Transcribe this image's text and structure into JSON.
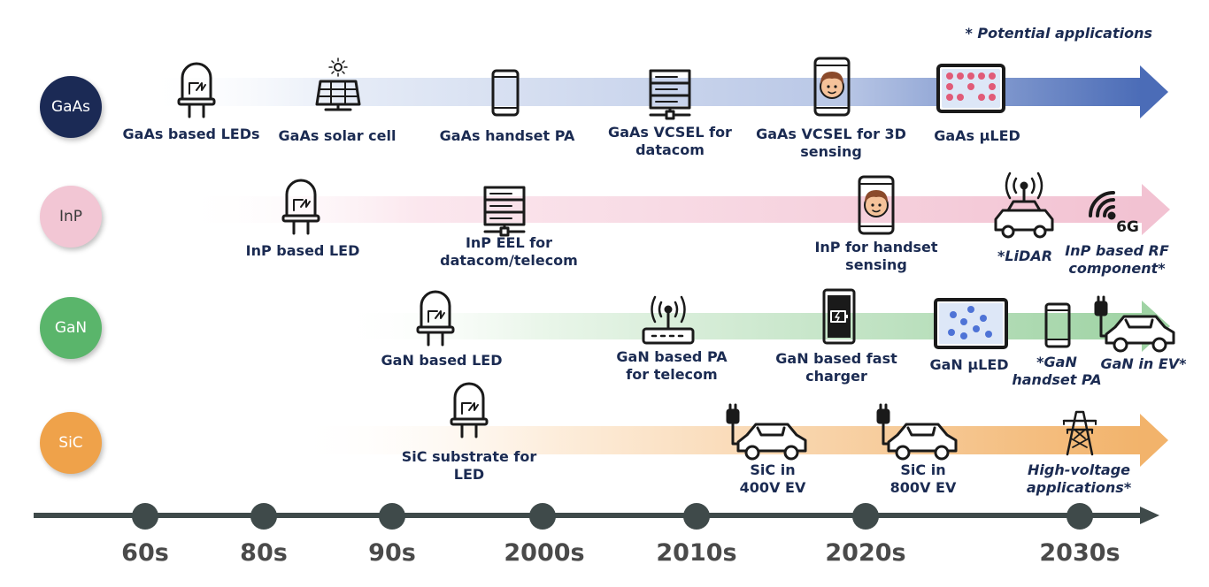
{
  "note": "* Potential applications",
  "colors": {
    "gaas": "#1b2a55",
    "inp": "#f2c6d4",
    "gan": "#5ab56b",
    "sic": "#efa24a",
    "timeline": "#3f4a4a"
  },
  "rows": [
    {
      "name": "GaAs",
      "items": [
        {
          "icon": "led-icon",
          "lines": [
            "GaAs based LEDs"
          ]
        },
        {
          "icon": "solar-panel-icon",
          "lines": [
            "GaAs solar cell"
          ]
        },
        {
          "icon": "smartphone-icon",
          "lines": [
            "GaAs handset PA"
          ]
        },
        {
          "icon": "server-icon",
          "lines": [
            "GaAs VCSEL for",
            "datacom"
          ]
        },
        {
          "icon": "face-phone-icon",
          "lines": [
            "GaAs VCSEL for 3D",
            "sensing"
          ]
        },
        {
          "icon": "microled-display-icon",
          "lines": [
            "GaAs µLED"
          ]
        }
      ]
    },
    {
      "name": "InP",
      "items": [
        {
          "icon": "led-icon",
          "lines": [
            "InP based LED"
          ]
        },
        {
          "icon": "server-icon",
          "lines": [
            "InP EEL for",
            "datacom/telecom"
          ]
        },
        {
          "icon": "face-phone-icon",
          "lines": [
            "InP for handset",
            "sensing"
          ]
        },
        {
          "icon": "lidar-car-icon",
          "lines": [
            "*LiDAR"
          ]
        },
        {
          "icon": "wifi-6g-icon",
          "lines": [
            "InP based RF",
            "component*"
          ]
        }
      ]
    },
    {
      "name": "GaN",
      "items": [
        {
          "icon": "led-icon",
          "lines": [
            "GaN based LED"
          ]
        },
        {
          "icon": "router-icon",
          "lines": [
            "GaN based PA",
            "for telecom"
          ]
        },
        {
          "icon": "charging-phone-icon",
          "lines": [
            "GaN based fast",
            "charger"
          ]
        },
        {
          "icon": "microled-display-icon",
          "lines": [
            "GaN µLED"
          ]
        },
        {
          "icon": "smartphone-icon",
          "lines": [
            "*GaN",
            "handset PA"
          ]
        },
        {
          "icon": "electric-car-icon",
          "lines": [
            "GaN in EV*"
          ]
        }
      ]
    },
    {
      "name": "SiC",
      "items": [
        {
          "icon": "led-icon",
          "lines": [
            "SiC substrate for",
            "LED"
          ]
        },
        {
          "icon": "electric-car-icon",
          "lines": [
            "SiC in",
            "400V EV"
          ]
        },
        {
          "icon": "electric-car-icon",
          "lines": [
            "SiC in",
            "800V EV"
          ]
        },
        {
          "icon": "power-tower-icon",
          "lines": [
            "High-voltage",
            "applications*"
          ]
        }
      ]
    }
  ],
  "eras": [
    "60s",
    "80s",
    "90s",
    "2000s",
    "2010s",
    "2020s",
    "2030s"
  ]
}
